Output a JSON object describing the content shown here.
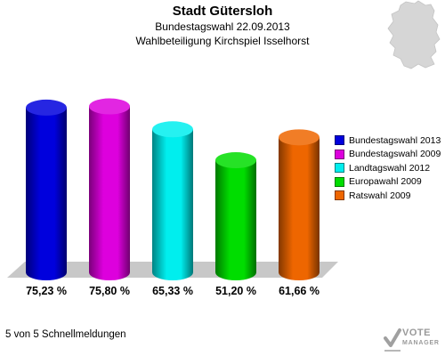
{
  "header": {
    "title": "Stadt Gütersloh",
    "subtitle1": "Bundestagswahl 22.09.2013",
    "subtitle2": "Wahlbeteiligung Kirchspiel Isselhorst"
  },
  "footer": {
    "text": "5 von 5 Schnellmeldungen"
  },
  "watermark": {
    "line1": "VOTE",
    "line2": "MANAGER"
  },
  "chart_data": {
    "type": "bar",
    "categories": [
      "Bundestagswahl 2013",
      "Bundestagswahl 2009",
      "Landtagswahl 2012",
      "Europawahl 2009",
      "Ratswahl 2009"
    ],
    "values": [
      75.23,
      75.8,
      65.33,
      51.2,
      61.66
    ],
    "value_labels": [
      "75,23 %",
      "75,80 %",
      "65,33 %",
      "51,20 %",
      "61,66 %"
    ],
    "colors": [
      "#0000dd",
      "#dd00dd",
      "#00eeee",
      "#00dd00",
      "#ee6600"
    ],
    "ylim": [
      0,
      100
    ],
    "grid": false,
    "legend_position": "right"
  },
  "legend": {
    "items": [
      {
        "label": "Bundestagswahl 2013",
        "color": "#0000dd"
      },
      {
        "label": "Bundestagswahl 2009",
        "color": "#dd00dd"
      },
      {
        "label": "Landtagswahl 2012",
        "color": "#00eeee"
      },
      {
        "label": "Europawahl 2009",
        "color": "#00dd00"
      },
      {
        "label": "Ratswahl 2009",
        "color": "#ee6600"
      }
    ]
  }
}
